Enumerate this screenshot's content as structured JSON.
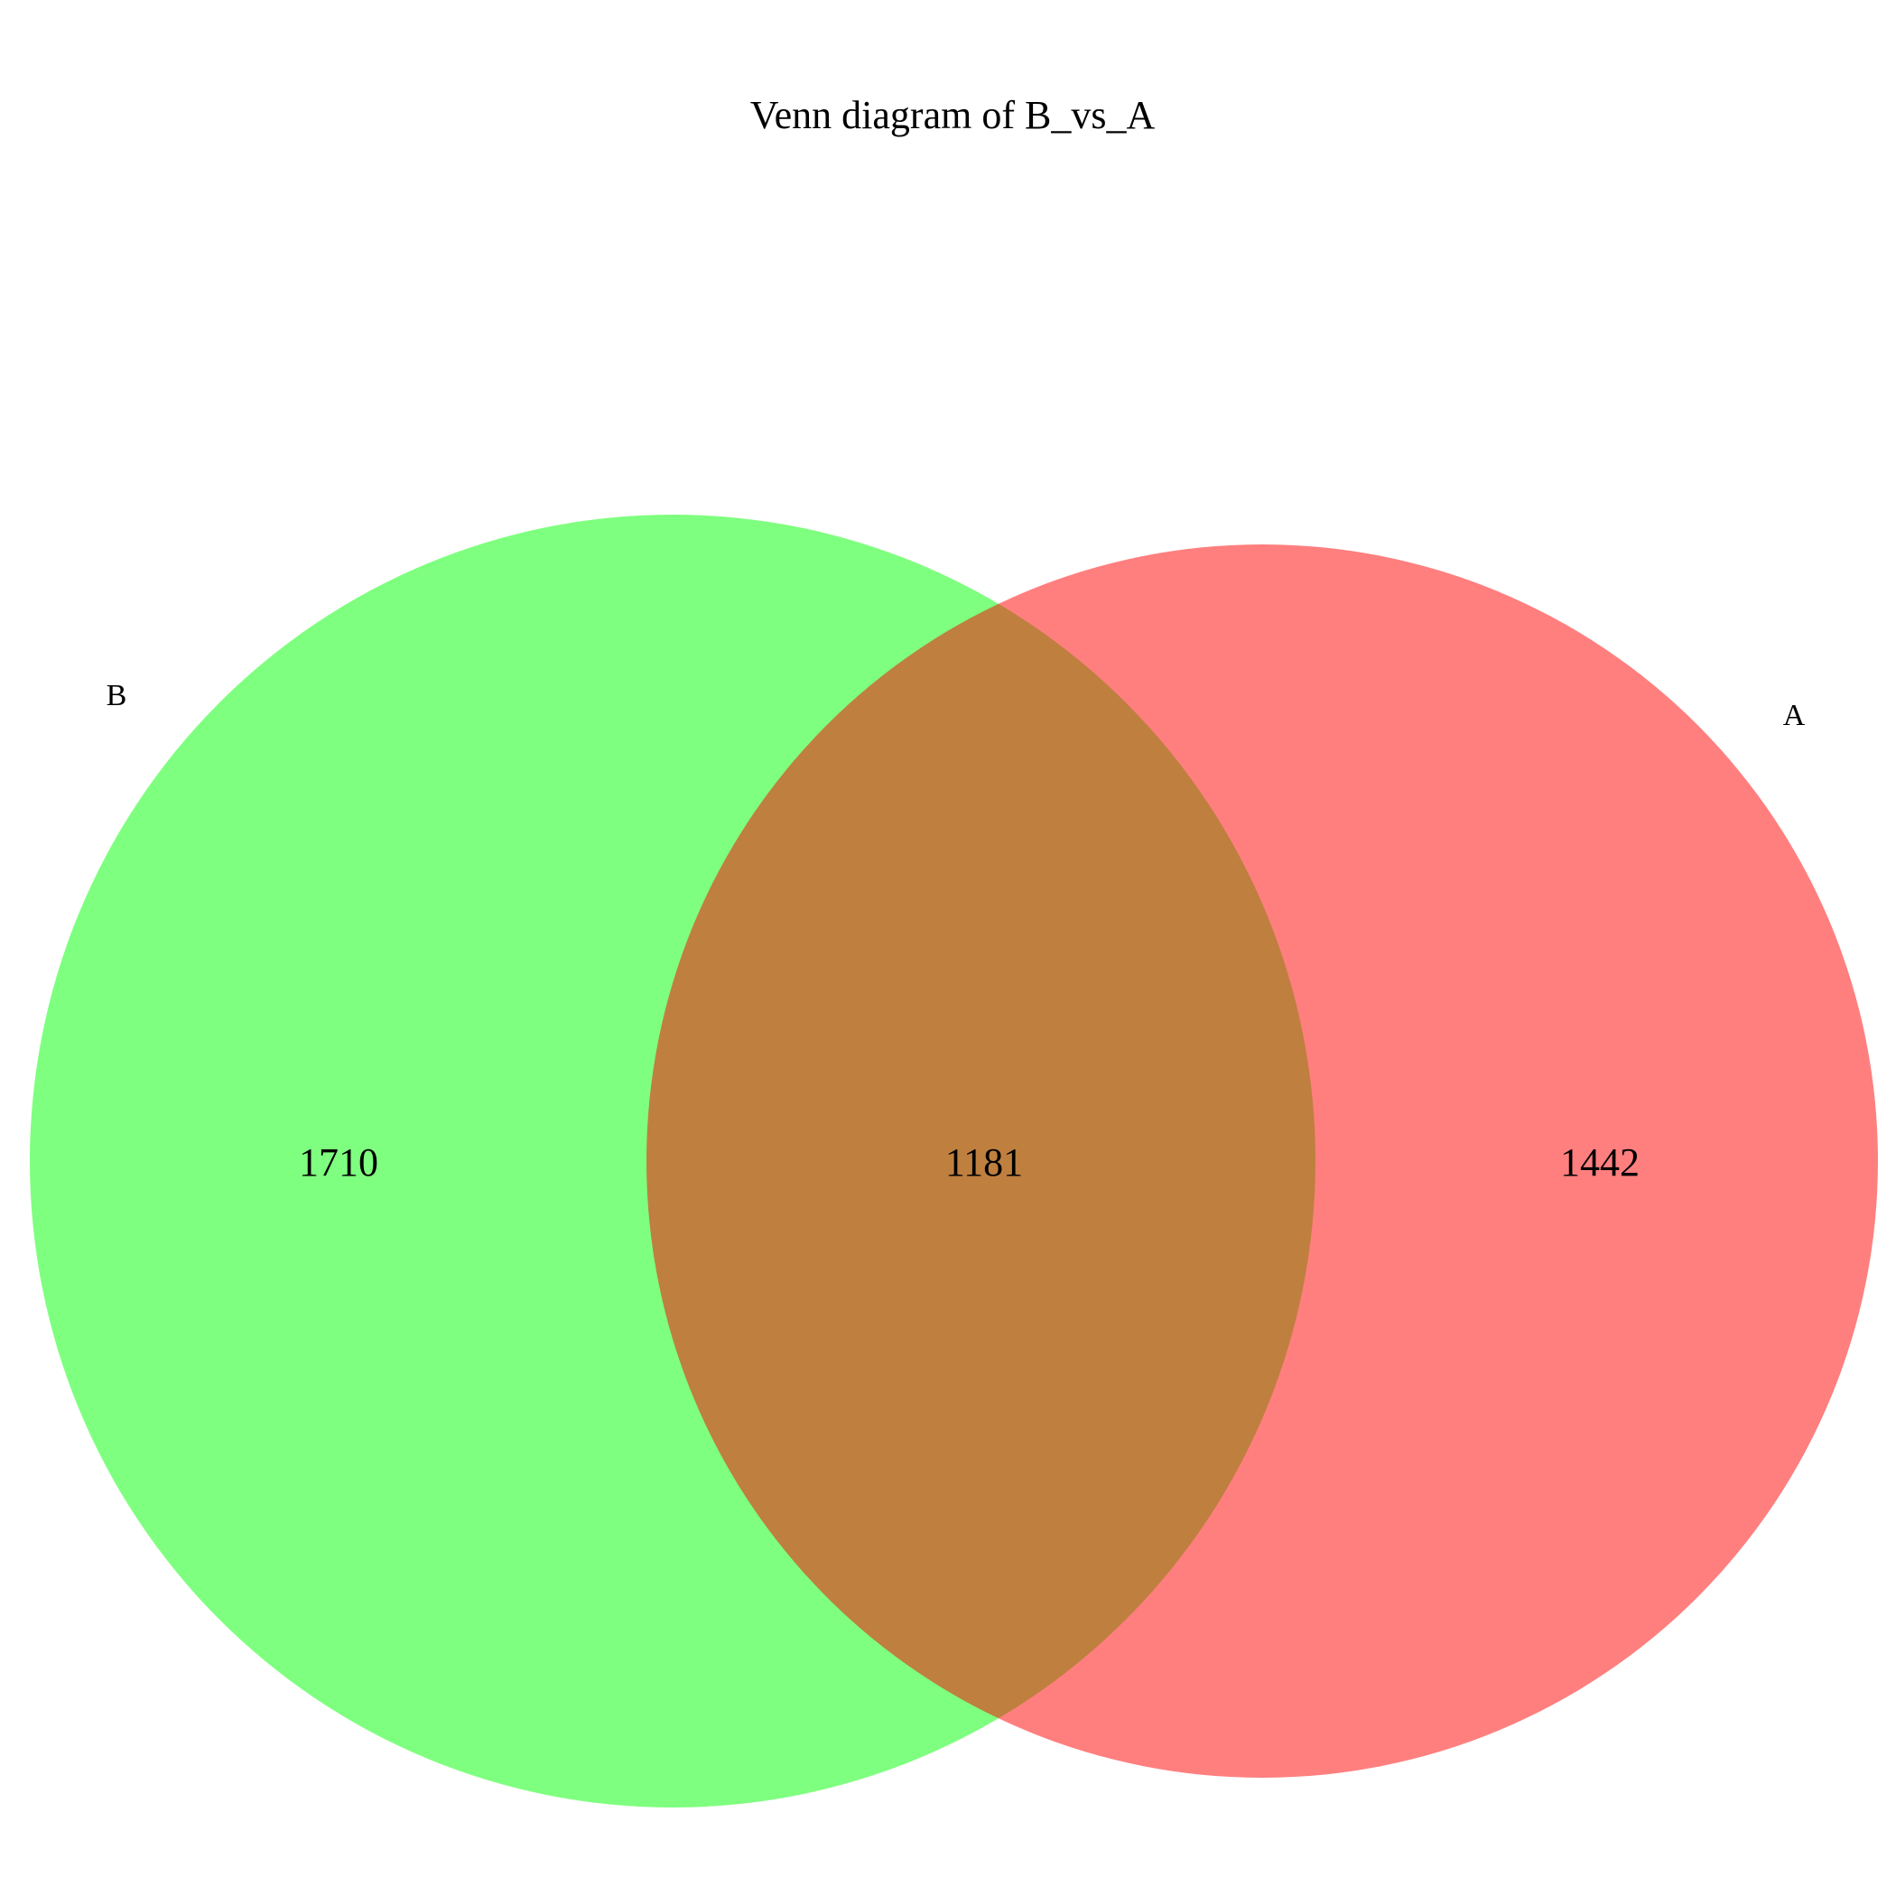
{
  "diagram": {
    "type": "venn",
    "title": "Venn diagram of B_vs_A",
    "sets": [
      {
        "id": "B",
        "label": "B",
        "color": "#00FF00",
        "opacity": 0.5
      },
      {
        "id": "A",
        "label": "A",
        "color": "#FF0000",
        "opacity": 0.5
      }
    ],
    "regions": {
      "only_B": "1710",
      "intersection": "1181",
      "only_A": "1442"
    }
  }
}
